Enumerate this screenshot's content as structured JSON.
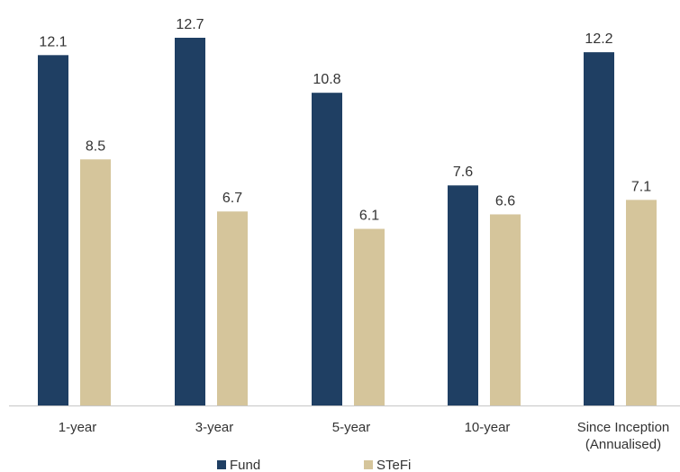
{
  "colors": {
    "fund": "#1f3f63",
    "stefi": "#d5c59b",
    "axis": "#c7c7c7",
    "text": "#333333"
  },
  "chart_data": {
    "type": "bar",
    "title": "",
    "xlabel": "",
    "ylabel": "",
    "categories": [
      "1-year",
      "3-year",
      "5-year",
      "10-year",
      "Since Inception\n(Annualised)"
    ],
    "series": [
      {
        "name": "Fund",
        "values": [
          12.1,
          12.7,
          10.8,
          7.6,
          12.2
        ]
      },
      {
        "name": "STeFi",
        "values": [
          8.5,
          6.7,
          6.1,
          6.6,
          7.1
        ]
      }
    ],
    "ylim": [
      0,
      12.7
    ],
    "grid": false,
    "legend": "bottom",
    "data_labels": true
  }
}
